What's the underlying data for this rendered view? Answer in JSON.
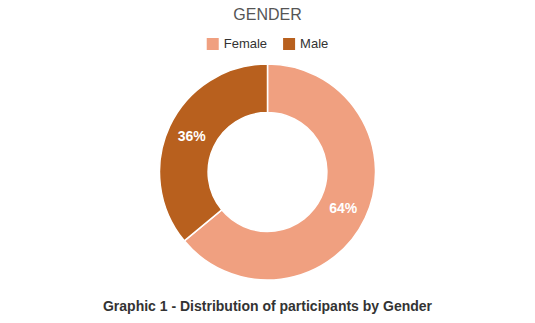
{
  "chart_data": {
    "type": "donut",
    "title": "GENDER",
    "caption": "Graphic 1 - Distribution of participants by Gender",
    "categories": [
      "Female",
      "Male"
    ],
    "values": [
      64,
      36
    ],
    "value_labels": [
      "64%",
      "36%"
    ],
    "data_labels": true,
    "colors": [
      "#F0A080",
      "#B8601E"
    ],
    "legend": "top"
  }
}
